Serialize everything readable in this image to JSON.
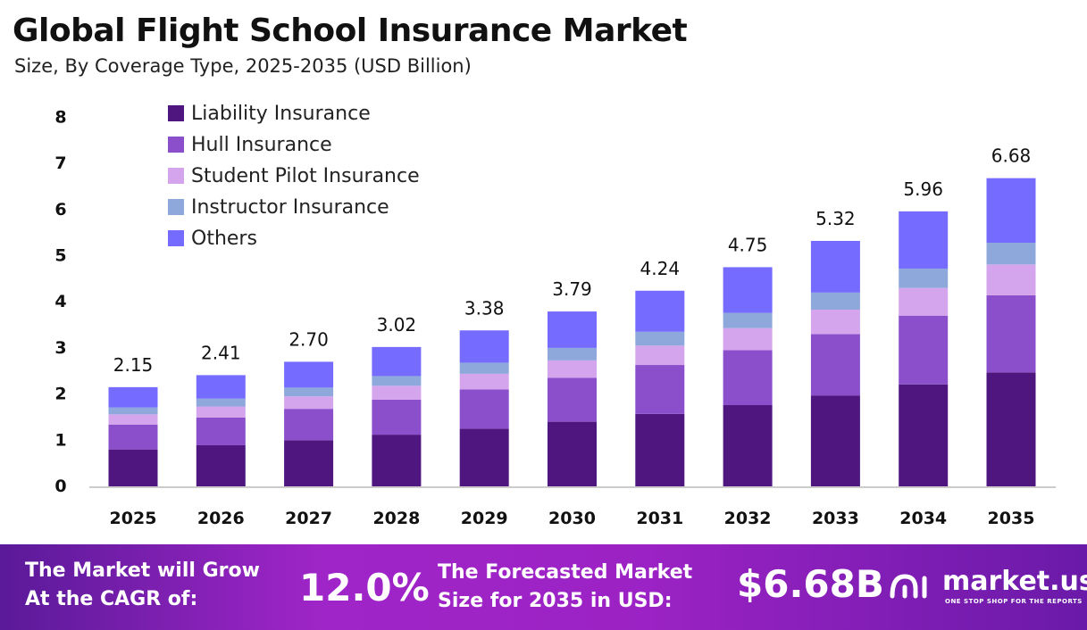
{
  "header": {
    "title": "Global Flight School Insurance Market",
    "subtitle": "Size, By Coverage Type, 2025-2035 (USD Billion)"
  },
  "chart_data": {
    "type": "bar",
    "stacked": true,
    "categories": [
      "2025",
      "2026",
      "2027",
      "2028",
      "2029",
      "2030",
      "2031",
      "2032",
      "2033",
      "2034",
      "2035"
    ],
    "totals": [
      2.15,
      2.41,
      2.7,
      3.02,
      3.38,
      3.79,
      4.24,
      4.75,
      5.32,
      5.96,
      6.68
    ],
    "total_labels": [
      "2.15",
      "2.41",
      "2.70",
      "3.02",
      "3.38",
      "3.79",
      "4.24",
      "4.75",
      "5.32",
      "5.96",
      "6.68"
    ],
    "series": [
      {
        "name": "Liability Insurance",
        "color": "#4F1680",
        "values": [
          0.8,
          0.89,
          1.0,
          1.12,
          1.25,
          1.4,
          1.57,
          1.76,
          1.97,
          2.21,
          2.47
        ]
      },
      {
        "name": "Hull Insurance",
        "color": "#8B4FCC",
        "values": [
          0.54,
          0.6,
          0.68,
          0.76,
          0.85,
          0.95,
          1.06,
          1.19,
          1.33,
          1.49,
          1.67
        ]
      },
      {
        "name": "Student Pilot Insurance",
        "color": "#D4A5EC",
        "values": [
          0.22,
          0.24,
          0.27,
          0.3,
          0.34,
          0.38,
          0.42,
          0.48,
          0.53,
          0.6,
          0.67
        ]
      },
      {
        "name": "Instructor Insurance",
        "color": "#8EA8DB",
        "values": [
          0.15,
          0.17,
          0.19,
          0.21,
          0.24,
          0.27,
          0.3,
          0.33,
          0.37,
          0.42,
          0.47
        ]
      },
      {
        "name": "Others",
        "color": "#756BFF",
        "values": [
          0.44,
          0.51,
          0.56,
          0.63,
          0.7,
          0.79,
          0.89,
          0.99,
          1.12,
          1.24,
          1.4
        ]
      }
    ],
    "yticks": [
      "0",
      "1",
      "2",
      "3",
      "4",
      "5",
      "6",
      "7",
      "8"
    ],
    "ylim": [
      0,
      8
    ],
    "grid": false,
    "legend": "top-left"
  },
  "footer": {
    "cagr_label": "The Market will Grow At the CAGR of:",
    "cagr_label_1": "The Market will Grow",
    "cagr_label_2": "At the CAGR of:",
    "cagr_value": "12.0%",
    "forecast_label_1": "The Forecasted Market",
    "forecast_label_2": "Size for 2035 in USD:",
    "forecast_value": "$6.68B",
    "brand": "market.us",
    "tagline": "ONE STOP SHOP FOR THE REPORTS"
  }
}
